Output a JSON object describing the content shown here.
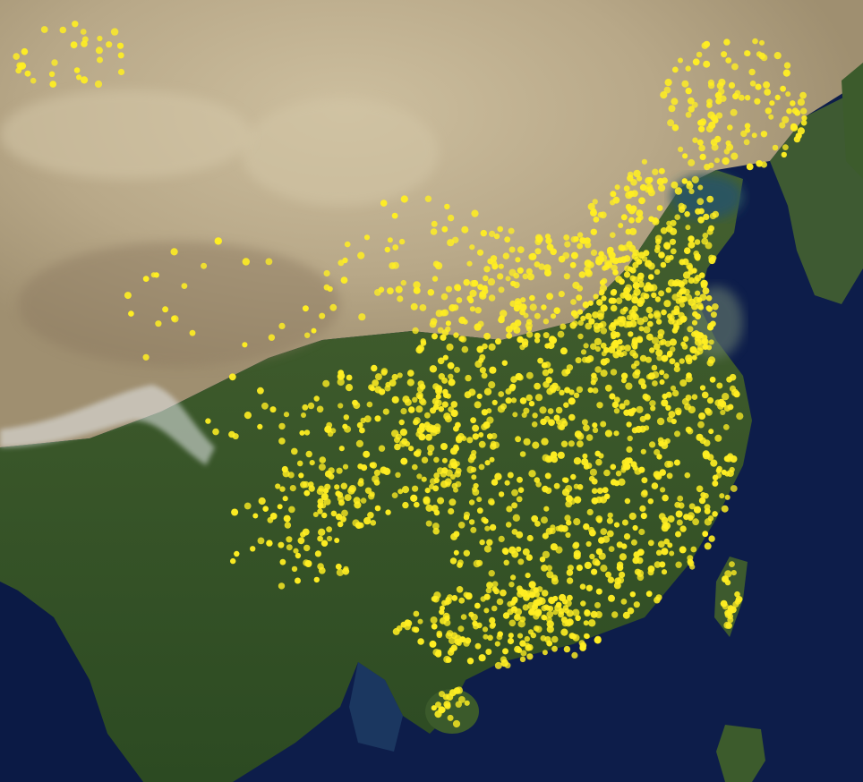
{
  "map": {
    "kind": "satellite",
    "region": "East Asia",
    "layer": "point-locations",
    "colors": {
      "ocean": "#0d1d4a",
      "ocean_deep": "#08122f",
      "shallow_sea": "#2d5a63",
      "desert": "#b9ab8e",
      "desert_light": "#cfc2a4",
      "plateau": "#9c8b6f",
      "forest": "#3a5a2a",
      "forest_dark": "#2a4520",
      "snow": "#e8ecef",
      "marker": "#ffee22"
    }
  }
}
